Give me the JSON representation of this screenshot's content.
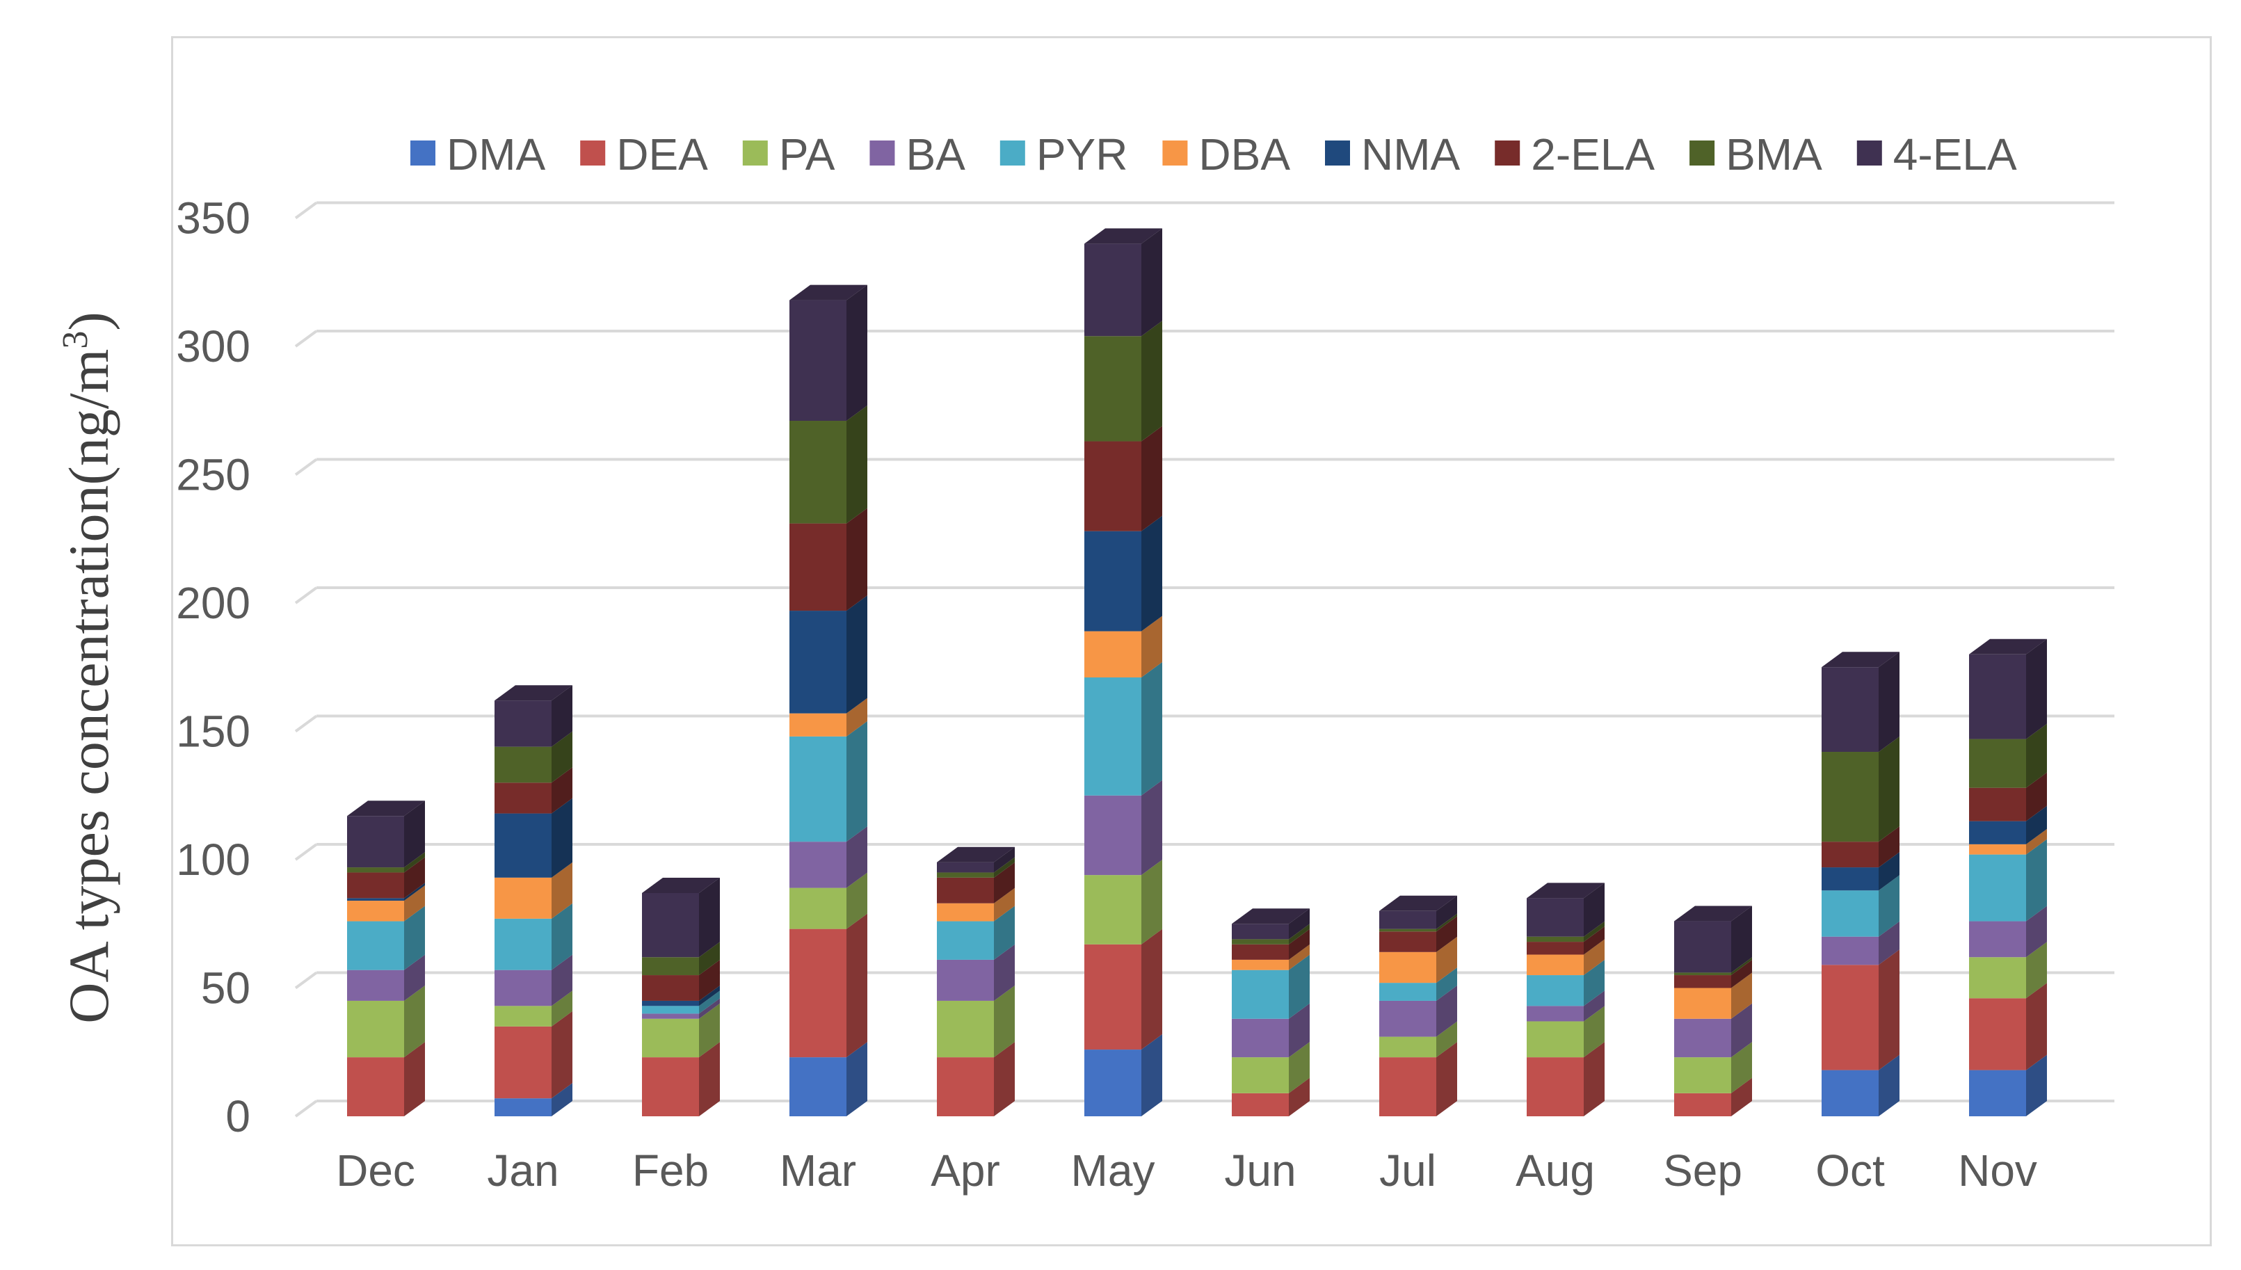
{
  "chart_data": {
    "type": "bar",
    "stacked": true,
    "style": "3d-stacked-column",
    "title": "",
    "xlabel": "",
    "ylabel": "OA types concentration(ng/m",
    "ylabel_sup": "3",
    "ylabel_close": ")",
    "ylim": [
      0,
      350
    ],
    "yticks": [
      0,
      50,
      100,
      150,
      200,
      250,
      300,
      350
    ],
    "ytick_labels": [
      "0",
      "50",
      "100",
      "150",
      "200",
      "250",
      "300",
      "350"
    ],
    "grid": true,
    "legend_position": "top",
    "categories": [
      "Dec",
      "Jan",
      "Feb",
      "Mar",
      "Apr",
      "May",
      "Jun",
      "Jul",
      "Aug",
      "Sep",
      "Oct",
      "Nov"
    ],
    "series": [
      {
        "name": "DMA",
        "color": "#4472c4",
        "values": [
          0,
          7,
          0,
          23,
          0,
          26,
          0,
          0,
          0,
          0,
          18,
          18
        ]
      },
      {
        "name": "DEA",
        "color": "#c0504d",
        "values": [
          23,
          28,
          23,
          50,
          23,
          41,
          9,
          23,
          23,
          9,
          41,
          28
        ]
      },
      {
        "name": "PA",
        "color": "#9bbb59",
        "values": [
          22,
          8,
          15,
          16,
          22,
          27,
          14,
          8,
          14,
          14,
          0,
          16
        ]
      },
      {
        "name": "BA",
        "color": "#8064a2",
        "values": [
          12,
          14,
          2,
          18,
          16,
          31,
          15,
          14,
          6,
          15,
          11,
          14
        ]
      },
      {
        "name": "PYR",
        "color": "#4bacc6",
        "values": [
          19,
          20,
          3,
          41,
          15,
          46,
          19,
          7,
          12,
          0,
          18,
          26
        ]
      },
      {
        "name": "DBA",
        "color": "#f79646",
        "values": [
          8,
          16,
          0,
          9,
          7,
          18,
          4,
          12,
          8,
          12,
          0,
          4
        ]
      },
      {
        "name": "NMA",
        "color": "#1f497d",
        "values": [
          1,
          25,
          2,
          40,
          0,
          39,
          0,
          0,
          0,
          0,
          9,
          9
        ]
      },
      {
        "name": "2-ELA",
        "color": "#772c2a",
        "values": [
          10,
          12,
          10,
          34,
          10,
          35,
          6,
          8,
          5,
          5,
          10,
          13
        ]
      },
      {
        "name": "BMA",
        "color": "#4f6228",
        "values": [
          2,
          14,
          7,
          40,
          2,
          41,
          2,
          1,
          2,
          1,
          35,
          19
        ]
      },
      {
        "name": "4-ELA",
        "color": "#3f3151",
        "values": [
          20,
          18,
          25,
          47,
          4,
          36,
          6,
          7,
          15,
          20,
          33,
          33
        ]
      }
    ]
  }
}
